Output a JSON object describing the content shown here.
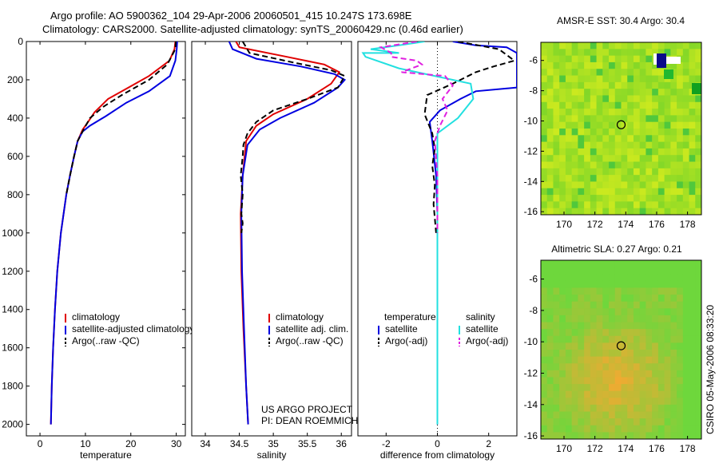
{
  "header": {
    "line1": "Argo profile: AO 5900362_104 29-Apr-2006 20060501_415 10.247S 173.698E",
    "line2": "Climatology: CARS2000. Satellite-adjusted climatology: synTS_20060429.nc (0.46d earlier)"
  },
  "credit": {
    "project": "US ARGO PROJECT",
    "pi": "PI: DEAN ROEMMICH",
    "side": "CSIRO 05-May-2006 08:33:20"
  },
  "colors": {
    "climatology": "#e00000",
    "satellite": "#0000e0",
    "argo": "#000000",
    "cyan": "#22e0e0",
    "magenta": "#e020e0"
  },
  "chart_data": [
    {
      "type": "line",
      "xlabel": "temperature",
      "xlim": [
        -3,
        32
      ],
      "ylim": [
        2060,
        0
      ],
      "xticks": [
        0,
        10,
        20,
        30
      ],
      "yticks": [
        0,
        200,
        400,
        600,
        800,
        1000,
        1200,
        1400,
        1600,
        1800,
        2000
      ],
      "legend": [
        "climatology",
        "satellite-adjusted climatology",
        "Argo(..raw -QC)"
      ],
      "series": [
        {
          "name": "climatology",
          "style": "solid",
          "color": "climatology",
          "x": [
            29.8,
            29.6,
            28.5,
            24,
            19.5,
            15,
            12,
            10.6,
            9.4,
            8.3,
            7.5,
            6.6,
            5.8,
            4.6,
            3.8,
            3.3,
            2.9,
            2.6,
            2.4
          ],
          "y": [
            0,
            40,
            100,
            180,
            240,
            300,
            370,
            420,
            460,
            520,
            600,
            700,
            800,
            1000,
            1200,
            1400,
            1600,
            1800,
            2000
          ]
        },
        {
          "name": "satellite-adjusted climatology",
          "style": "solid",
          "color": "satellite",
          "x": [
            30.2,
            30.1,
            29.8,
            28.6,
            24,
            19,
            14.5,
            11,
            9.4,
            8.3,
            7.5,
            6.6,
            5.8,
            4.6,
            3.8,
            3.3,
            2.9,
            2.6,
            2.4
          ],
          "y": [
            0,
            40,
            100,
            180,
            260,
            320,
            390,
            440,
            470,
            520,
            600,
            700,
            800,
            1000,
            1200,
            1400,
            1600,
            1800,
            2000
          ]
        },
        {
          "name": "Argo(..raw -QC)",
          "style": "dashed",
          "color": "argo",
          "x": [
            29.9,
            29.8,
            28,
            24,
            18,
            14,
            11,
            9.6,
            8.3,
            7.5,
            6.6,
            5.8
          ],
          "y": [
            0,
            40,
            120,
            200,
            280,
            340,
            400,
            460,
            520,
            600,
            700,
            800
          ]
        }
      ]
    },
    {
      "type": "line",
      "xlabel": "salinity",
      "xlim": [
        33.8,
        36.15
      ],
      "ylim": [
        2060,
        0
      ],
      "xticks": [
        34,
        34.5,
        35,
        35.5,
        36
      ],
      "legend": [
        "climatology",
        "satellite adj. clim.",
        "Argo(..raw -QC)"
      ],
      "series": [
        {
          "name": "climatology",
          "style": "solid",
          "color": "climatology",
          "x": [
            34.45,
            34.5,
            35.2,
            35.75,
            35.97,
            35.85,
            35.5,
            35,
            34.75,
            34.6,
            34.55,
            34.52,
            34.53,
            34.56,
            34.6,
            34.63
          ],
          "y": [
            0,
            30,
            80,
            120,
            160,
            220,
            300,
            380,
            440,
            520,
            700,
            900,
            1200,
            1500,
            1800,
            2000
          ]
        },
        {
          "name": "satellite adj. clim.",
          "style": "solid",
          "color": "satellite",
          "x": [
            34.35,
            34.4,
            34.75,
            35.4,
            35.9,
            36.05,
            35.95,
            35.6,
            35.1,
            34.8,
            34.62,
            34.55,
            34.53,
            34.54,
            34.57,
            34.6,
            34.63
          ],
          "y": [
            0,
            40,
            90,
            130,
            170,
            200,
            240,
            320,
            400,
            460,
            540,
            700,
            900,
            1200,
            1500,
            1800,
            2000
          ]
        },
        {
          "name": "Argo(..raw -QC)",
          "style": "dashed",
          "color": "argo",
          "x": [
            34.55,
            34.65,
            35.3,
            35.85,
            36.05,
            35.95,
            35.5,
            35,
            34.75,
            34.62,
            34.56,
            34.55,
            34.52,
            34.55,
            34.53,
            34.55,
            34.53
          ],
          "y": [
            0,
            60,
            110,
            150,
            180,
            240,
            300,
            360,
            420,
            480,
            540,
            600,
            700,
            800,
            900,
            950,
            1000
          ]
        }
      ]
    },
    {
      "type": "line",
      "xlabel": "difference from climatology",
      "xlim": [
        -3.1,
        3.1
      ],
      "ylim": [
        2060,
        0
      ],
      "xticks": [
        -2,
        0,
        2
      ],
      "legend": [
        "temperature",
        "satellite",
        "Argo(-adj)",
        "salinity",
        "satellite",
        "Argo(-adj)"
      ],
      "series": [
        {
          "name": "temperature satellite",
          "style": "solid",
          "color": "satellite",
          "x": [
            0.6,
            1.5,
            2.7,
            3.1,
            3.1,
            1.5,
            0.9,
            0.1,
            -0.3,
            -0.2,
            -0.05,
            0,
            0,
            0
          ],
          "y": [
            0,
            20,
            30,
            60,
            240,
            260,
            300,
            360,
            420,
            520,
            700,
            900,
            1400,
            2000
          ]
        },
        {
          "name": "temperature Argo(-adj)",
          "style": "dashed",
          "color": "argo",
          "x": [
            0.8,
            1.6,
            2.4,
            2.6,
            3,
            2.2,
            1.5,
            0.6,
            -0.4,
            -0.5,
            -0.2,
            -0.1,
            -0.2,
            -0.1,
            -0.15,
            -0.05
          ],
          "y": [
            0,
            20,
            40,
            60,
            100,
            130,
            160,
            220,
            280,
            380,
            480,
            560,
            650,
            750,
            850,
            1000
          ]
        },
        {
          "name": "salinity satellite",
          "style": "solid",
          "color": "cyan",
          "x": [
            -0.5,
            -1.5,
            -2.6,
            -1.5,
            -2.9,
            -2.8,
            -1.5,
            1.3,
            1.4,
            0.8,
            0,
            0,
            0,
            0,
            0
          ],
          "y": [
            0,
            20,
            40,
            60,
            60,
            80,
            140,
            220,
            300,
            400,
            480,
            700,
            1000,
            1400,
            2000
          ]
        },
        {
          "name": "salinity Argo(-adj)",
          "style": "dashed",
          "color": "magenta",
          "x": [
            -0.8,
            -2.2,
            -1.8,
            -1.8,
            -0.8,
            -0.6,
            -1.4,
            0.3,
            0.6,
            0.2,
            0.4,
            0.1,
            -0.1,
            0,
            0,
            0
          ],
          "y": [
            0,
            30,
            60,
            80,
            100,
            120,
            160,
            180,
            230,
            300,
            360,
            440,
            520,
            700,
            850,
            1000
          ]
        }
      ]
    },
    {
      "type": "heatmap",
      "title": "AMSR-E SST: 30.4 Argo: 30.4",
      "xlim": [
        168.5,
        178.9
      ],
      "ylim": [
        -16.2,
        -4.8
      ],
      "xticks": [
        170,
        172,
        174,
        176,
        178
      ],
      "yticks": [
        -6,
        -8,
        -10,
        -12,
        -14,
        -16
      ],
      "marker": {
        "lon": 173.7,
        "lat": -10.25
      }
    },
    {
      "type": "heatmap",
      "title": "Altimetric SLA: 0.27 Argo: 0.21",
      "xlim": [
        168.5,
        178.9
      ],
      "ylim": [
        -16.2,
        -4.8
      ],
      "xticks": [
        170,
        172,
        174,
        176,
        178
      ],
      "yticks": [
        -6,
        -8,
        -10,
        -12,
        -14,
        -16
      ],
      "marker": {
        "lon": 173.7,
        "lat": -10.25
      }
    }
  ]
}
